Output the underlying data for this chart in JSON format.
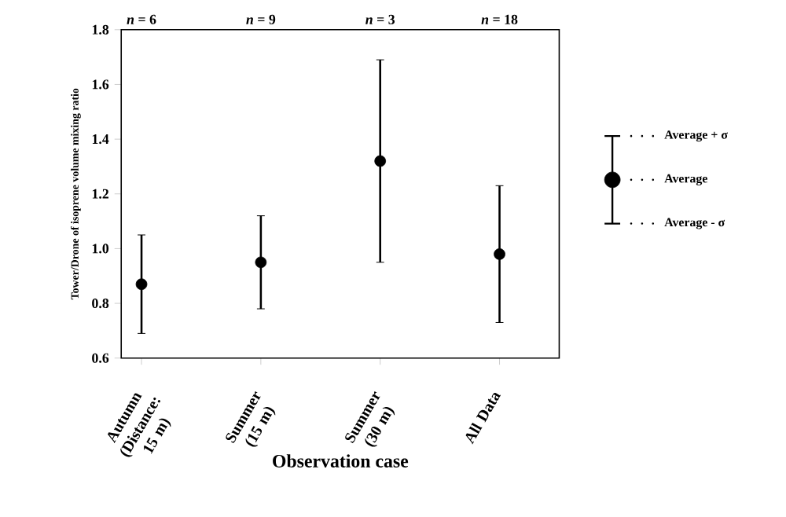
{
  "chart_data": {
    "type": "scatter",
    "categories": [
      "Autumn (Distance: 15 m)",
      "Summer (15 m)",
      "Summer (30 m)",
      "All Data"
    ],
    "values": [
      0.87,
      0.95,
      1.32,
      0.98
    ],
    "errors": [
      0.18,
      0.17,
      0.37,
      0.25
    ],
    "color": "#000000",
    "marker": "circle",
    "ylim": [
      0.6,
      1.8
    ],
    "yticks": [
      0.6,
      0.8,
      {
        "value": 1.0,
        "label": "1.0"
      },
      1.2,
      1.4,
      1.6,
      1.8
    ],
    "xlabel": "Observation case",
    "ylabel": "Tower/Drone of  isoprene volume mixing ratio",
    "annotations": [
      "*n* = 6",
      "*n* = 9",
      "*n* = 3",
      "*n* = 18",
      "Average + σ",
      "Average",
      "Average - σ"
    ],
    "grid": false
  }
}
